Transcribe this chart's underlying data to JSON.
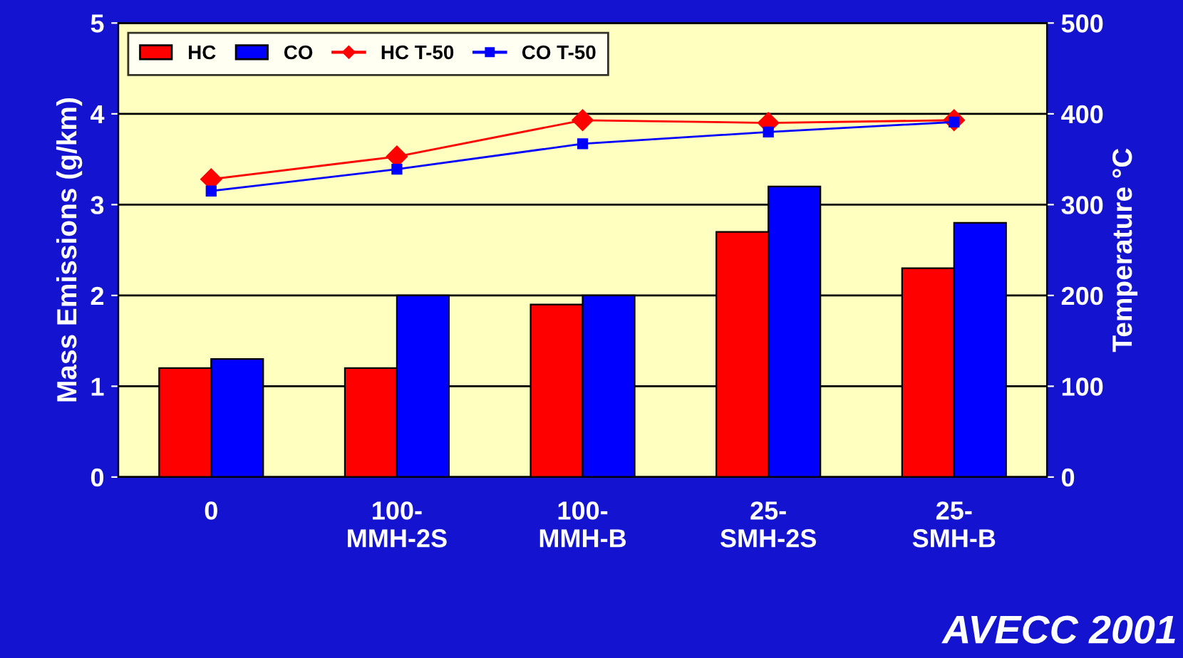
{
  "chart_data": {
    "type": "bar",
    "ylabel": "Mass Emissions (g/km)",
    "y2label": "Temperature °C",
    "categories": [
      "0",
      "100-\nMMH-2S",
      "100-\nMMH-B",
      "25-\nSMH-2S",
      "25-\nSMH-B"
    ],
    "series": [
      {
        "name": "HC",
        "color": "#ff0000",
        "values": [
          1.2,
          1.2,
          1.9,
          2.7,
          2.3
        ]
      },
      {
        "name": "CO",
        "color": "#0000ff",
        "values": [
          1.3,
          2.0,
          2.0,
          3.2,
          2.8
        ]
      },
      {
        "name": "HC T-50",
        "type": "line",
        "axis": "y2",
        "marker": "diamond",
        "color": "#ff0000",
        "values": [
          328,
          353,
          393,
          390,
          393
        ]
      },
      {
        "name": "CO T-50",
        "type": "line",
        "axis": "y2",
        "marker": "square",
        "color": "#0000ff",
        "values": [
          315,
          339,
          367,
          380,
          391
        ]
      }
    ],
    "ylim": [
      0,
      5
    ],
    "yticks": [
      0,
      1,
      2,
      3,
      4,
      5
    ],
    "y2lim": [
      0,
      500
    ],
    "y2ticks": [
      0,
      100,
      200,
      300,
      400,
      500
    ],
    "grid": "y",
    "legend": "top left",
    "annotations": [
      "AVECC 2001"
    ]
  }
}
